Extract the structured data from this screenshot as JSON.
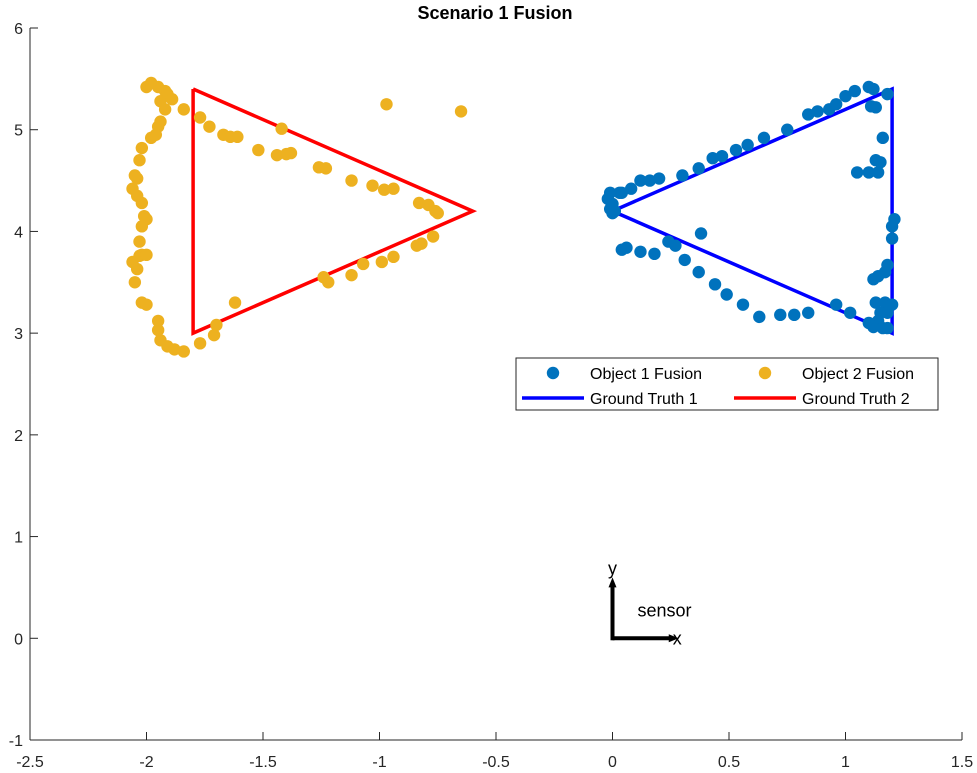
{
  "chart_data": {
    "type": "scatter",
    "title": "Scenario 1 Fusion",
    "xlabel": "",
    "ylabel": "",
    "xlim": [
      -2.5,
      1.5
    ],
    "ylim": [
      -1,
      6
    ],
    "xticks": [
      -2.5,
      -2,
      -1.5,
      -1,
      -0.5,
      0,
      0.5,
      1,
      1.5
    ],
    "yticks": [
      -1,
      0,
      1,
      2,
      3,
      4,
      5,
      6
    ],
    "xtick_labels": [
      "-2.5",
      "-2",
      "-1.5",
      "-1",
      "-0.5",
      "0",
      "0.5",
      "1",
      "1.5"
    ],
    "ytick_labels": [
      "-1",
      "0",
      "1",
      "2",
      "3",
      "4",
      "5",
      "6"
    ],
    "grid": false,
    "legend_position": "right",
    "series": [
      {
        "name": "Object 1 Fusion",
        "kind": "scatter",
        "color": "#0072BD",
        "points": [
          [
            -0.01,
            4.38
          ],
          [
            -0.02,
            4.32
          ],
          [
            0.0,
            4.27
          ],
          [
            -0.01,
            4.22
          ],
          [
            0.0,
            4.18
          ],
          [
            0.01,
            4.2
          ],
          [
            0.03,
            4.38
          ],
          [
            0.04,
            4.38
          ],
          [
            0.08,
            4.42
          ],
          [
            0.12,
            4.5
          ],
          [
            0.16,
            4.5
          ],
          [
            0.2,
            4.52
          ],
          [
            0.3,
            4.55
          ],
          [
            0.37,
            4.62
          ],
          [
            0.43,
            4.72
          ],
          [
            0.47,
            4.74
          ],
          [
            0.53,
            4.8
          ],
          [
            0.58,
            4.85
          ],
          [
            0.65,
            4.92
          ],
          [
            0.75,
            5.0
          ],
          [
            0.84,
            5.15
          ],
          [
            0.88,
            5.18
          ],
          [
            0.93,
            5.2
          ],
          [
            0.96,
            5.25
          ],
          [
            1.0,
            5.33
          ],
          [
            1.04,
            5.38
          ],
          [
            1.1,
            5.42
          ],
          [
            1.12,
            5.4
          ],
          [
            1.18,
            5.35
          ],
          [
            1.11,
            5.23
          ],
          [
            1.13,
            5.22
          ],
          [
            1.16,
            4.92
          ],
          [
            1.13,
            4.7
          ],
          [
            1.15,
            4.68
          ],
          [
            1.05,
            4.58
          ],
          [
            1.1,
            4.58
          ],
          [
            1.14,
            4.58
          ],
          [
            1.21,
            4.12
          ],
          [
            1.2,
            4.05
          ],
          [
            1.2,
            3.93
          ],
          [
            1.18,
            3.67
          ],
          [
            1.17,
            3.6
          ],
          [
            1.14,
            3.56
          ],
          [
            1.12,
            3.53
          ],
          [
            1.13,
            3.3
          ],
          [
            1.17,
            3.3
          ],
          [
            1.2,
            3.28
          ],
          [
            1.15,
            3.2
          ],
          [
            1.18,
            3.2
          ],
          [
            1.14,
            3.12
          ],
          [
            1.1,
            3.1
          ],
          [
            1.12,
            3.06
          ],
          [
            1.16,
            3.05
          ],
          [
            1.18,
            3.05
          ],
          [
            1.02,
            3.2
          ],
          [
            0.96,
            3.28
          ],
          [
            0.84,
            3.2
          ],
          [
            0.78,
            3.18
          ],
          [
            0.72,
            3.18
          ],
          [
            0.63,
            3.16
          ],
          [
            0.56,
            3.28
          ],
          [
            0.49,
            3.38
          ],
          [
            0.44,
            3.48
          ],
          [
            0.37,
            3.6
          ],
          [
            0.31,
            3.72
          ],
          [
            0.27,
            3.86
          ],
          [
            0.24,
            3.9
          ],
          [
            0.18,
            3.78
          ],
          [
            0.12,
            3.8
          ],
          [
            0.06,
            3.84
          ],
          [
            0.04,
            3.82
          ],
          [
            0.38,
            3.98
          ]
        ]
      },
      {
        "name": "Object 2 Fusion",
        "kind": "scatter",
        "color": "#EDB120",
        "points": [
          [
            -2.0,
            5.42
          ],
          [
            -1.98,
            5.46
          ],
          [
            -1.95,
            5.42
          ],
          [
            -1.92,
            5.38
          ],
          [
            -1.91,
            5.35
          ],
          [
            -1.94,
            5.28
          ],
          [
            -1.89,
            5.3
          ],
          [
            -1.92,
            5.2
          ],
          [
            -1.94,
            5.08
          ],
          [
            -1.95,
            5.03
          ],
          [
            -1.96,
            4.95
          ],
          [
            -1.98,
            4.92
          ],
          [
            -2.02,
            4.82
          ],
          [
            -2.03,
            4.7
          ],
          [
            -2.05,
            4.55
          ],
          [
            -2.04,
            4.52
          ],
          [
            -2.06,
            4.42
          ],
          [
            -2.04,
            4.35
          ],
          [
            -2.02,
            4.28
          ],
          [
            -2.01,
            4.15
          ],
          [
            -2.0,
            4.12
          ],
          [
            -2.02,
            4.05
          ],
          [
            -2.03,
            3.9
          ],
          [
            -2.02,
            3.77
          ],
          [
            -2.03,
            3.76
          ],
          [
            -2.0,
            3.77
          ],
          [
            -2.06,
            3.7
          ],
          [
            -2.04,
            3.63
          ],
          [
            -2.05,
            3.5
          ],
          [
            -2.02,
            3.3
          ],
          [
            -2.0,
            3.28
          ],
          [
            -1.95,
            3.12
          ],
          [
            -1.95,
            3.03
          ],
          [
            -1.94,
            2.93
          ],
          [
            -1.91,
            2.87
          ],
          [
            -1.88,
            2.84
          ],
          [
            -1.84,
            2.82
          ],
          [
            -1.77,
            2.9
          ],
          [
            -1.71,
            2.98
          ],
          [
            -1.7,
            3.08
          ],
          [
            -1.62,
            3.3
          ],
          [
            -1.84,
            5.2
          ],
          [
            -1.77,
            5.12
          ],
          [
            -1.73,
            5.03
          ],
          [
            -1.67,
            4.95
          ],
          [
            -1.64,
            4.93
          ],
          [
            -1.61,
            4.93
          ],
          [
            -1.42,
            5.01
          ],
          [
            -1.52,
            4.8
          ],
          [
            -1.44,
            4.75
          ],
          [
            -1.4,
            4.76
          ],
          [
            -1.38,
            4.77
          ],
          [
            -1.26,
            4.63
          ],
          [
            -1.23,
            4.62
          ],
          [
            -1.12,
            4.5
          ],
          [
            -1.03,
            4.45
          ],
          [
            -0.98,
            4.41
          ],
          [
            -0.94,
            4.42
          ],
          [
            -0.83,
            4.28
          ],
          [
            -0.79,
            4.26
          ],
          [
            -0.76,
            4.2
          ],
          [
            -0.75,
            4.18
          ],
          [
            -0.77,
            3.95
          ],
          [
            -0.82,
            3.88
          ],
          [
            -0.84,
            3.86
          ],
          [
            -0.94,
            3.75
          ],
          [
            -0.99,
            3.7
          ],
          [
            -1.07,
            3.68
          ],
          [
            -1.12,
            3.57
          ],
          [
            -1.22,
            3.5
          ],
          [
            -1.24,
            3.55
          ],
          [
            -0.97,
            5.25
          ],
          [
            -0.65,
            5.18
          ]
        ]
      },
      {
        "name": "Ground Truth 1",
        "kind": "line",
        "color": "#0000FF",
        "points": [
          [
            0,
            4.2
          ],
          [
            1.2,
            5.4
          ],
          [
            1.2,
            3.0
          ],
          [
            0,
            4.2
          ]
        ]
      },
      {
        "name": "Ground Truth 2",
        "kind": "line",
        "color": "#FF0000",
        "points": [
          [
            -1.8,
            5.4
          ],
          [
            -0.6,
            4.2
          ],
          [
            -1.8,
            3.0
          ],
          [
            -1.8,
            5.4
          ]
        ]
      }
    ],
    "annotations": {
      "sensor_label": "sensor",
      "x_arrow_label": "x",
      "y_arrow_label": "y",
      "sensor_origin": [
        0,
        0
      ]
    }
  }
}
